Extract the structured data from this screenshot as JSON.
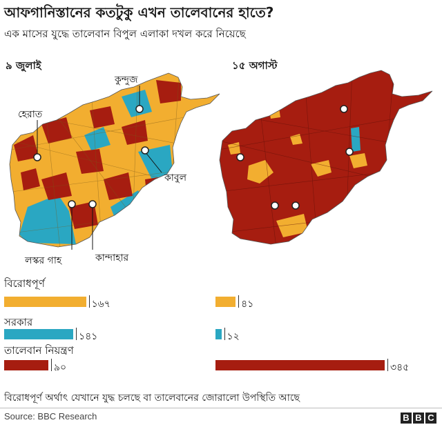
{
  "title": "আফগানিস্তানের কতটুকু এখন তালেবানের হাতে?",
  "subtitle": "এক মাসের যুদ্ধে তালেবান বিপুল এলাকা দখল করে নিয়েছে",
  "dates": {
    "before": "৯ জুলাই",
    "after": "১৫ অগাস্ট"
  },
  "cities": {
    "kunduz": "কুন্দুজ",
    "herat": "হেরাত",
    "kabul": "কাবুল",
    "lashkar_gah": "লস্কর গাহ",
    "kandahar": "কান্দাহার"
  },
  "colors": {
    "contested": "#f2ae30",
    "government": "#2aa7c2",
    "taliban": "#a61d10"
  },
  "chart_data": {
    "type": "bar",
    "categories": [
      "বিরোধপূর্ণ",
      "সরকার",
      "তালেবান নিয়ন্ত্রণ"
    ],
    "series": [
      {
        "name": "৯ জুলাই",
        "values": [
          167,
          141,
          90
        ],
        "labels": [
          "১৬৭",
          "১৪১",
          "৯০"
        ]
      },
      {
        "name": "১৫ অগাস্ট",
        "values": [
          41,
          12,
          345
        ],
        "labels": [
          "৪১",
          "১২",
          "৩৪৫"
        ]
      }
    ]
  },
  "note": "বিরোধপূর্ণ অর্থাৎ যেখানে যুদ্ধ চলছে বা তালেবানের জোরালো উপস্থিতি আছে",
  "source": "Source: BBC Research",
  "logo": "BBC"
}
